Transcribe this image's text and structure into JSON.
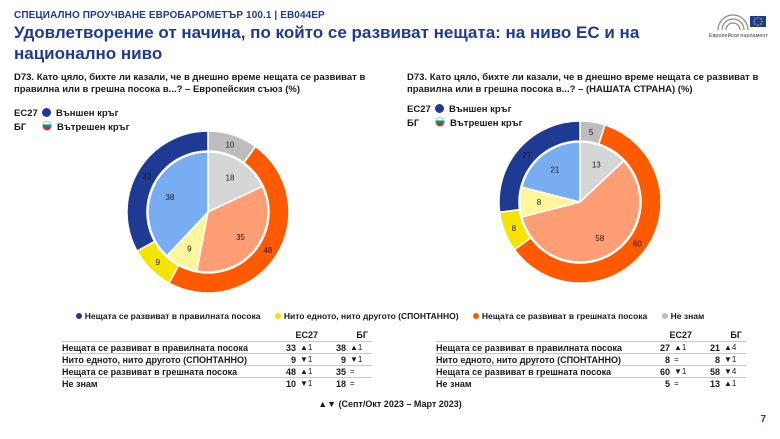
{
  "header": {
    "kicker": "СПЕЦИАЛНО ПРОУЧВАНЕ ЕВРОБАРОМЕТЪР 100.1 | EB044EP",
    "title": "Удовлетворение от начина, по който се развиват нещата: на ниво ЕС и на национално ниво",
    "logo_label": "Европейски парламент"
  },
  "colors": {
    "right_way": "#1f3a93",
    "neither": "#f4e400",
    "wrong_way": "#ff5a00",
    "dont_know": "#bdbdbd",
    "inner_right_way": "#79adf1",
    "inner_neither": "#fff59a",
    "inner_wrong_way": "#ff9d74",
    "inner_dont_know": "#d6d6d6"
  },
  "ring_legend": {
    "outer_tag": "ЕС27",
    "outer_label": "Външен кръг",
    "inner_tag": "БГ",
    "inner_label": "Вътрешен кръг"
  },
  "panels": [
    {
      "question": "D73. Като цяло, бихте ли казали, че в днешно време нещата се развиват в правилна или в грешна посока в...? – Европейския съюз (%)",
      "table": {
        "col_eu": "ЕС27",
        "col_bg": "БГ",
        "rows": [
          {
            "label": "Нещата се развиват в правилната посока",
            "eu": "33",
            "eu_ch": "▲1",
            "bg": "38",
            "bg_ch": "▲1"
          },
          {
            "label": "Нито едното, нито другото (СПОНТАННО)",
            "eu": "9",
            "eu_ch": "▼1",
            "bg": "9",
            "bg_ch": "▼1"
          },
          {
            "label": "Нещата се развиват в грешната посока",
            "eu": "48",
            "eu_ch": "▲1",
            "bg": "35",
            "bg_ch": "="
          },
          {
            "label": "Не знам",
            "eu": "10",
            "eu_ch": "▼1",
            "bg": "18",
            "bg_ch": "="
          }
        ]
      }
    },
    {
      "question": "D73. Като цяло, бихте ли казали, че в днешно време нещата се развиват в правилна или в грешна посока в...? – (НАШАТА СТРАНА) (%)",
      "table": {
        "col_eu": "ЕС27",
        "col_bg": "БГ",
        "rows": [
          {
            "label": "Нещата се развиват в правилната посока",
            "eu": "27",
            "eu_ch": "▲1",
            "bg": "21",
            "bg_ch": "▲4"
          },
          {
            "label": "Нито едното, нито другото (СПОНТАННО)",
            "eu": "8",
            "eu_ch": "=",
            "bg": "8",
            "bg_ch": "▼1"
          },
          {
            "label": "Нещата се развиват в грешната посока",
            "eu": "60",
            "eu_ch": "▼1",
            "bg": "58",
            "bg_ch": "▼4"
          },
          {
            "label": "Не знам",
            "eu": "5",
            "eu_ch": "=",
            "bg": "13",
            "bg_ch": "▲1"
          }
        ]
      }
    }
  ],
  "legend": [
    {
      "label": "Нещата се развиват в правилната посока",
      "color": "#1f3a93"
    },
    {
      "label": "Нито едното, нито другото (СПОНТАННО)",
      "color": "#f4e400"
    },
    {
      "label": "Нещата се развиват в грешната посока",
      "color": "#ff5a00"
    },
    {
      "label": "Не знам",
      "color": "#bdbdbd"
    }
  ],
  "chart_data": [
    {
      "type": "pie",
      "categories": [
        "Нещата се развиват в правилната посока",
        "Нито едното, нито другото (СПОНТАННО)",
        "Нещата се развиват в грешната посока",
        "Не знам"
      ],
      "series": [
        {
          "name": "ЕС27",
          "values": [
            33,
            9,
            48,
            10
          ]
        },
        {
          "name": "БГ",
          "values": [
            38,
            9,
            35,
            18
          ]
        }
      ]
    },
    {
      "type": "pie",
      "categories": [
        "Нещата се развиват в правилната посока",
        "Нито едното, нито другото (СПОНТАННО)",
        "Нещата се развиват в грешната посока",
        "Не знам"
      ],
      "series": [
        {
          "name": "ЕС27",
          "values": [
            27,
            8,
            60,
            5
          ]
        },
        {
          "name": "БГ",
          "values": [
            21,
            8,
            58,
            13
          ]
        }
      ]
    }
  ],
  "footnote": "▲▼ (Септ/Окт 2023 – Март 2023)",
  "page_number": "7"
}
